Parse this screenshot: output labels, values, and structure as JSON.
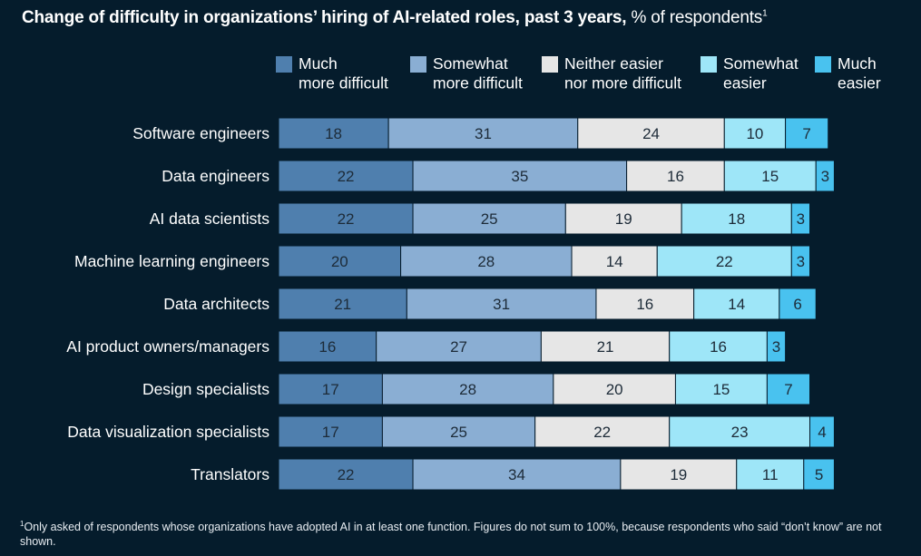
{
  "title": {
    "bold": "Change of difficulty in organizations’ hiring of AI-related roles, past 3 years,",
    "regular": " % of respondents",
    "footnote_marker": "1"
  },
  "colors": {
    "background": "#051c2c",
    "much_more_difficult": "#4f7fae",
    "somewhat_more_difficult": "#8aaed3",
    "neither": "#e6e6e6",
    "somewhat_easier": "#9ee6f8",
    "much_easier": "#49c2ef"
  },
  "chart_data": {
    "type": "bar",
    "orientation": "horizontal",
    "stacked": true,
    "categories": [
      "Software engineers",
      "Data engineers",
      "AI data scientists",
      "Machine learning engineers",
      "Data architects",
      "AI product owners/managers",
      "Design specialists",
      "Data visualization specialists",
      "Translators"
    ],
    "series": [
      {
        "name": [
          "Much",
          "more difficult"
        ],
        "color": "#4f7fae",
        "values": [
          18,
          22,
          22,
          20,
          21,
          16,
          17,
          17,
          22
        ]
      },
      {
        "name": [
          "Somewhat",
          "more difficult"
        ],
        "color": "#8aaed3",
        "values": [
          31,
          35,
          25,
          28,
          31,
          27,
          28,
          25,
          34
        ]
      },
      {
        "name": [
          "Neither easier",
          "nor more difficult"
        ],
        "color": "#e6e6e6",
        "values": [
          24,
          16,
          19,
          14,
          16,
          21,
          20,
          22,
          19
        ]
      },
      {
        "name": [
          "Somewhat",
          "easier"
        ],
        "color": "#9ee6f8",
        "values": [
          10,
          15,
          18,
          22,
          14,
          16,
          15,
          23,
          11
        ]
      },
      {
        "name": [
          "Much",
          "easier"
        ],
        "color": "#49c2ef",
        "values": [
          7,
          3,
          3,
          3,
          6,
          3,
          7,
          4,
          5
        ]
      }
    ],
    "legend_position": "top",
    "grid": false
  },
  "footnote": {
    "marker": "1",
    "text": "Only asked of respondents whose organizations have adopted AI in at least one function. Figures do not sum to 100%, because respondents who said “don’t know” are not shown."
  }
}
